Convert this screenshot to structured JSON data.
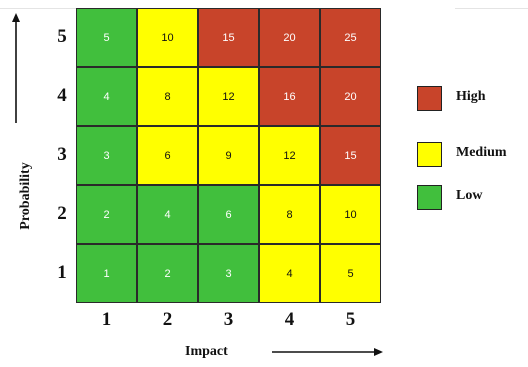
{
  "colors": {
    "high": "#c8442a",
    "medium": "#ffff00",
    "low": "#41bf3d"
  },
  "matrix": {
    "rows": [
      {
        "probability": "5",
        "cells": [
          {
            "v": "5",
            "level": "low"
          },
          {
            "v": "10",
            "level": "medium"
          },
          {
            "v": "15",
            "level": "high"
          },
          {
            "v": "20",
            "level": "high"
          },
          {
            "v": "25",
            "level": "high"
          }
        ]
      },
      {
        "probability": "4",
        "cells": [
          {
            "v": "4",
            "level": "low"
          },
          {
            "v": "8",
            "level": "medium"
          },
          {
            "v": "12",
            "level": "medium"
          },
          {
            "v": "16",
            "level": "high"
          },
          {
            "v": "20",
            "level": "high"
          }
        ]
      },
      {
        "probability": "3",
        "cells": [
          {
            "v": "3",
            "level": "low"
          },
          {
            "v": "6",
            "level": "medium"
          },
          {
            "v": "9",
            "level": "medium"
          },
          {
            "v": "12",
            "level": "medium"
          },
          {
            "v": "15",
            "level": "high"
          }
        ]
      },
      {
        "probability": "2",
        "cells": [
          {
            "v": "2",
            "level": "low"
          },
          {
            "v": "4",
            "level": "low"
          },
          {
            "v": "6",
            "level": "low"
          },
          {
            "v": "8",
            "level": "medium"
          },
          {
            "v": "10",
            "level": "medium"
          }
        ]
      },
      {
        "probability": "1",
        "cells": [
          {
            "v": "1",
            "level": "low"
          },
          {
            "v": "2",
            "level": "low"
          },
          {
            "v": "3",
            "level": "low"
          },
          {
            "v": "4",
            "level": "medium"
          },
          {
            "v": "5",
            "level": "medium"
          }
        ]
      }
    ],
    "impact_labels": [
      "1",
      "2",
      "3",
      "4",
      "5"
    ]
  },
  "axes": {
    "y_title": "Probability",
    "x_title": "Impact"
  },
  "legend": [
    {
      "label": "High",
      "level": "high"
    },
    {
      "label": "Medium",
      "level": "medium"
    },
    {
      "label": "Low",
      "level": "low"
    }
  ]
}
